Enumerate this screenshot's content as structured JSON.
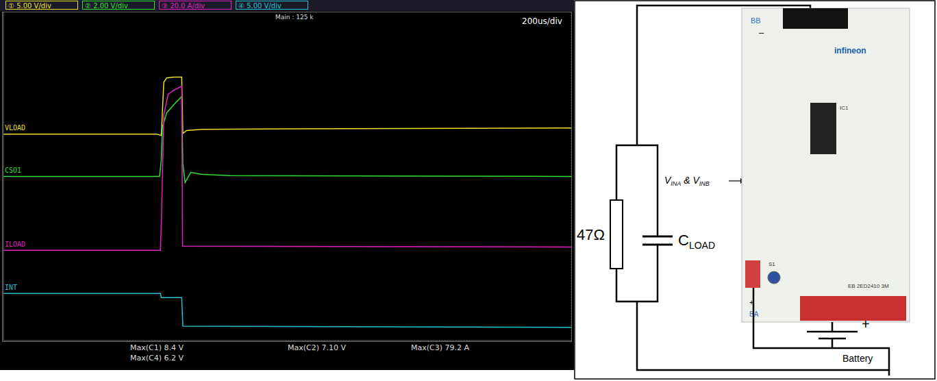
{
  "chart_data": {
    "type": "line",
    "xlim": [
      0,
      2000
    ],
    "ylim": [
      -4,
      4
    ],
    "xticks": [
      0,
      200,
      400,
      600,
      800,
      1000,
      1200,
      1400,
      1600,
      1800,
      2000
    ],
    "yticks": [
      -4,
      -3,
      -2,
      -1,
      0,
      1,
      2,
      3,
      4
    ],
    "grid": true,
    "tick_labels": false,
    "series": [
      {
        "name": "VLOAD",
        "color": "#e8e020",
        "x": [
          0,
          540,
          556,
          565,
          575,
          600,
          628,
          632,
          645,
          700,
          1000,
          2000
        ],
        "values": [
          1.03,
          1.03,
          1.0,
          2.3,
          2.4,
          2.42,
          2.42,
          1.05,
          1.12,
          1.15,
          1.16,
          1.18
        ]
      },
      {
        "name": "CSO1",
        "color": "#30e030",
        "x": [
          0,
          550,
          556,
          560,
          575,
          600,
          628,
          632,
          640,
          660,
          700,
          800,
          2000
        ],
        "values": [
          0,
          0,
          0.4,
          1.2,
          1.55,
          1.75,
          1.95,
          0.3,
          -0.15,
          0.1,
          0.05,
          0.02,
          0
        ]
      },
      {
        "name": "ILOAD",
        "color": "#e020c0",
        "x": [
          0,
          553,
          556,
          565,
          580,
          600,
          628,
          631,
          2000
        ],
        "values": [
          -1.8,
          -1.8,
          -1.2,
          1.5,
          2.0,
          2.1,
          2.2,
          -1.7,
          -1.72
        ]
      },
      {
        "name": "INT",
        "color": "#20c0d0",
        "x": [
          0,
          553,
          556,
          628,
          632,
          2000
        ],
        "values": [
          -2.85,
          -2.85,
          -2.95,
          -2.95,
          -3.65,
          -3.68
        ]
      }
    ]
  },
  "scope_header": {
    "channels": [
      {
        "label": "① 5.00 V/div",
        "color": "#e8e020"
      },
      {
        "label": "② 2.00 V/div",
        "color": "#30e030"
      },
      {
        "label": "③ 20.0 A/div",
        "color": "#e020c0"
      },
      {
        "label": "④ 5.00 V/div",
        "color": "#20c0d0"
      }
    ],
    "acquisition": "Main : 125 k",
    "timebase": "200us/div"
  },
  "measurements": [
    [
      "Max(C1) 8.4 V",
      "Max(C4) 6.2 V"
    ],
    [
      "Max(C2) 7.10 V"
    ],
    [
      "Max(C3) 79.2 A"
    ]
  ],
  "circuit": {
    "resistor": "47Ω",
    "capacitor": {
      "symbol": "C",
      "subscript": "LOAD"
    },
    "annotation": {
      "symbol": "V",
      "subscripts": [
        "INA",
        "INB"
      ],
      "joiner": " & "
    },
    "battery": {
      "label": "Battery",
      "polarity": "+"
    },
    "board": {
      "top_connector": "BB",
      "top_polarity": "–",
      "brand": "infineon",
      "ic": "IC1",
      "switch": "S1",
      "bottom_connector": "BA",
      "bottom_polarity": "+",
      "name": "EB 2ED2410 3M"
    }
  }
}
